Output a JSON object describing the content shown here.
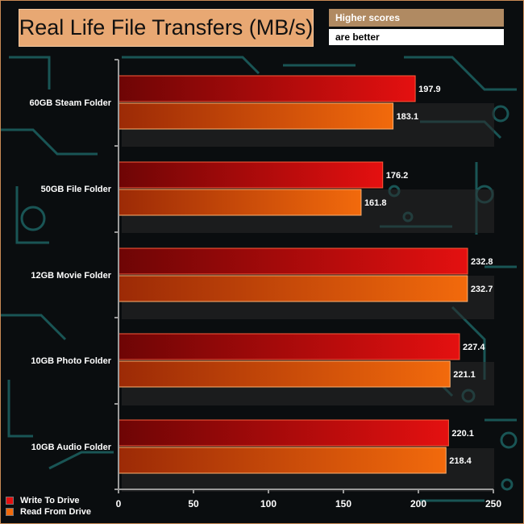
{
  "header": {
    "title": "Real Life File Transfers (MB/s)",
    "note_line1": "Higher scores",
    "note_line2": "are better"
  },
  "colors": {
    "write": "#e41010",
    "read": "#f26a0c",
    "title_bg": "#e8a873",
    "note_bg": "#b08a62",
    "circuit": "#1f6e6e"
  },
  "chart_data": {
    "type": "bar",
    "orientation": "horizontal",
    "title": "Real Life File Transfers (MB/s)",
    "xlabel": "",
    "ylabel": "",
    "xlim": [
      0,
      250
    ],
    "x_ticks": [
      0,
      50,
      100,
      150,
      200,
      250
    ],
    "categories": [
      "60GB Steam Folder",
      "50GB File Folder",
      "12GB Movie Folder",
      "10GB Photo Folder",
      "10GB Audio Folder"
    ],
    "series": [
      {
        "name": "Write To  Drive",
        "values": [
          197.9,
          176.2,
          232.8,
          227.4,
          220.1
        ]
      },
      {
        "name": "Read From  Drive",
        "values": [
          183.1,
          161.8,
          232.7,
          221.1,
          218.4
        ]
      }
    ],
    "value_labels": {
      "write": [
        "197.9",
        "176.2",
        "232.8",
        "227.4",
        "220.1"
      ],
      "read": [
        "183.1",
        "161.8",
        "232.7",
        "221.1",
        "218.4"
      ]
    },
    "legend": "bottom-left",
    "grid": false
  }
}
